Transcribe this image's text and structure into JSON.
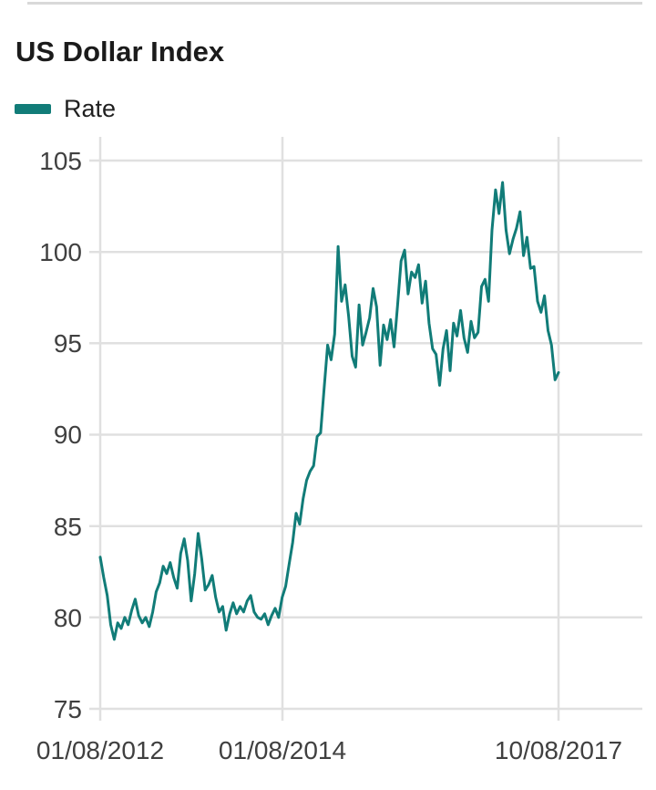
{
  "header": {
    "title": "US Dollar Index"
  },
  "legend": {
    "label": "Rate",
    "color": "#117c78"
  },
  "chart_data": {
    "type": "line",
    "title": "US Dollar Index",
    "xlabel": "",
    "ylabel": "",
    "ylim": [
      75,
      105
    ],
    "grid": true,
    "legend_position": "top-left",
    "ytick_labels": [
      "105",
      "100",
      "95",
      "90",
      "85",
      "80",
      "75"
    ],
    "ytick_values": [
      105,
      100,
      95,
      90,
      85,
      80,
      75
    ],
    "xtick_labels": [
      "01/08/2012",
      "01/08/2014",
      "10/08/2017"
    ],
    "x_range": {
      "start": "01/08/2012",
      "end": "10/08/2017"
    },
    "axis_color": "#e0e0e0",
    "series": [
      {
        "name": "Rate",
        "color": "#117c78",
        "values": [
          83.3,
          82.2,
          81.2,
          79.6,
          78.8,
          79.7,
          79.4,
          80.0,
          79.6,
          80.4,
          81.0,
          80.1,
          79.7,
          80.0,
          79.5,
          80.3,
          81.4,
          81.9,
          82.8,
          82.4,
          83.0,
          82.2,
          81.6,
          83.5,
          84.3,
          83.1,
          80.9,
          82.4,
          84.6,
          83.2,
          81.5,
          81.8,
          82.3,
          81.1,
          80.3,
          80.6,
          79.3,
          80.2,
          80.8,
          80.2,
          80.6,
          80.3,
          80.9,
          81.2,
          80.3,
          80.0,
          79.9,
          80.2,
          79.6,
          80.1,
          80.5,
          80.0,
          81.1,
          81.7,
          82.9,
          84.1,
          85.7,
          85.1,
          86.5,
          87.5,
          88.0,
          88.3,
          89.9,
          90.1,
          92.5,
          94.9,
          94.1,
          95.5,
          100.3,
          97.3,
          98.2,
          96.5,
          94.3,
          93.7,
          97.1,
          94.9,
          95.6,
          96.4,
          98.0,
          97.0,
          93.8,
          96.0,
          95.2,
          96.3,
          94.8,
          97.1,
          99.5,
          100.1,
          97.7,
          98.9,
          98.6,
          99.3,
          97.2,
          98.4,
          96.1,
          94.7,
          94.4,
          92.7,
          94.7,
          95.7,
          93.5,
          96.1,
          95.4,
          96.8,
          95.3,
          94.5,
          96.2,
          95.3,
          95.6,
          98.1,
          98.5,
          97.3,
          101.2,
          103.4,
          102.1,
          103.8,
          101.2,
          99.9,
          100.7,
          101.3,
          102.2,
          99.8,
          100.8,
          99.1,
          99.2,
          97.3,
          96.7,
          97.6,
          95.7,
          94.9,
          93.0,
          93.4
        ]
      }
    ]
  }
}
